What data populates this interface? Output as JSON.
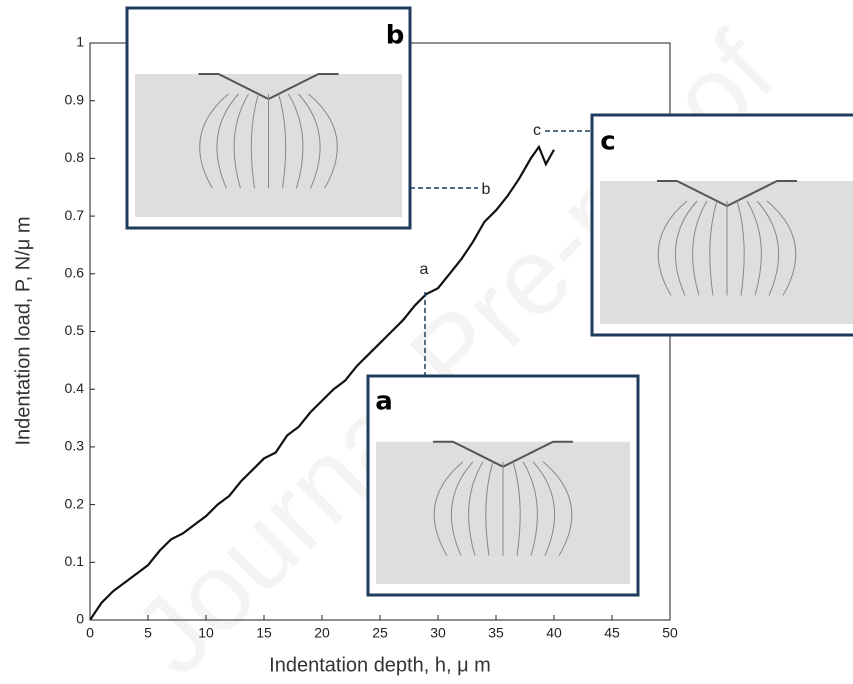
{
  "chart_data": {
    "type": "line",
    "xlabel": "Indentation depth, h, μ m",
    "ylabel": "Indentation load,  P, N/μ m",
    "x": [
      0,
      1,
      2,
      3,
      4,
      5,
      6,
      7,
      8,
      9,
      10,
      11,
      12,
      13,
      14,
      15,
      16,
      17,
      18,
      19,
      20,
      21,
      22,
      23,
      24,
      25,
      26,
      27,
      28,
      29,
      30,
      31,
      32,
      33,
      34,
      35,
      36,
      37,
      38,
      38.7,
      39.3,
      40
    ],
    "series": [
      {
        "color": "#111111",
        "values": [
          0,
          0.03,
          0.05,
          0.065,
          0.08,
          0.095,
          0.12,
          0.14,
          0.15,
          0.165,
          0.18,
          0.2,
          0.215,
          0.24,
          0.26,
          0.28,
          0.29,
          0.32,
          0.335,
          0.36,
          0.38,
          0.4,
          0.415,
          0.44,
          0.46,
          0.48,
          0.5,
          0.52,
          0.545,
          0.565,
          0.575,
          0.6,
          0.625,
          0.655,
          0.69,
          0.71,
          0.735,
          0.765,
          0.8,
          0.82,
          0.79,
          0.815
        ]
      }
    ],
    "xlim": [
      0,
      50
    ],
    "ylim": [
      0,
      1
    ],
    "xticks": [
      0,
      5,
      10,
      15,
      20,
      25,
      30,
      35,
      40,
      45,
      50
    ],
    "yticks": [
      0,
      0.1,
      0.2,
      0.3,
      0.4,
      0.5,
      0.6,
      0.7,
      0.8,
      0.9,
      1
    ],
    "annotations": [
      "a",
      "b",
      "c"
    ],
    "inset_labels": [
      "b",
      "c",
      "a"
    ],
    "watermark": "Journal Pre-proof"
  }
}
